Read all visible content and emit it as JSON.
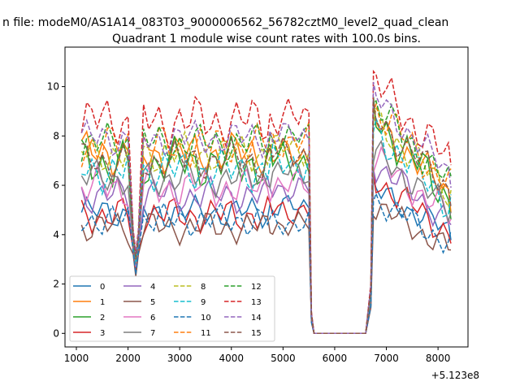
{
  "figure": {
    "suptitle": "n file: modeM0/AS1A14_083T03_9000006562_56782cztM0_level2_quad_clean"
  },
  "chart_data": {
    "type": "line",
    "title": "Quadrant 1 module wise count rates with 100.0s bins.",
    "xlabel": "",
    "ylabel": "",
    "x_offset_label": "+5.123e8",
    "xlim": [
      780,
      8580
    ],
    "ylim": [
      -0.55,
      11.6
    ],
    "x_ticks": [
      1000,
      2000,
      3000,
      4000,
      5000,
      6000,
      7000,
      8000
    ],
    "y_ticks": [
      0,
      2,
      4,
      6,
      8,
      10
    ],
    "grid": false,
    "legend": {
      "placement": "lower-left",
      "columns": 4
    },
    "x": [
      1100,
      1200,
      1300,
      1400,
      1500,
      1600,
      1700,
      1800,
      1900,
      2000,
      2100,
      2150,
      2200,
      2300,
      2400,
      2500,
      2600,
      2700,
      2800,
      2900,
      3000,
      3100,
      3200,
      3300,
      3400,
      3500,
      3600,
      3700,
      3800,
      3900,
      4000,
      4100,
      4200,
      4300,
      4400,
      4500,
      4600,
      4700,
      4750,
      4800,
      4900,
      5000,
      5100,
      5200,
      5300,
      5400,
      5500,
      5550,
      5600,
      5700,
      5800,
      5900,
      6000,
      6100,
      6200,
      6300,
      6400,
      6500,
      6600,
      6700,
      6750,
      6800,
      6900,
      7000,
      7100,
      7200,
      7300,
      7400,
      7500,
      7600,
      7700,
      7800,
      7900,
      8000,
      8100,
      8200,
      8250
    ],
    "seg_a_end": 4750,
    "seg_b_start": 4750,
    "seg_b_end": 6600,
    "seg_c_start": 6600,
    "series": [
      {
        "name": "0",
        "color": "#1f77b4",
        "dash": "solid",
        "base": 4.9,
        "dip": 2.6,
        "mid": 5.1,
        "post": 5.8,
        "end": 4.1,
        "amp": 0.45,
        "phase": 0.0
      },
      {
        "name": "1",
        "color": "#ff7f0e",
        "dash": "solid",
        "base": 7.3,
        "dip": 3.0,
        "mid": 7.2,
        "post": 8.6,
        "end": 5.6,
        "amp": 0.6,
        "phase": 0.4
      },
      {
        "name": "2",
        "color": "#2ca02c",
        "dash": "solid",
        "base": 6.9,
        "dip": 2.8,
        "mid": 7.0,
        "post": 8.8,
        "end": 5.4,
        "amp": 0.7,
        "phase": 0.9
      },
      {
        "name": "3",
        "color": "#d62728",
        "dash": "solid",
        "base": 4.8,
        "dip": 2.5,
        "mid": 5.0,
        "post": 6.3,
        "end": 4.0,
        "amp": 0.5,
        "phase": 1.3
      },
      {
        "name": "4",
        "color": "#9467bd",
        "dash": "solid",
        "base": 5.6,
        "dip": 2.7,
        "mid": 5.9,
        "post": 6.9,
        "end": 4.5,
        "amp": 0.5,
        "phase": 1.8
      },
      {
        "name": "5",
        "color": "#8c564b",
        "dash": "solid",
        "base": 4.3,
        "dip": 2.3,
        "mid": 4.4,
        "post": 5.2,
        "end": 3.4,
        "amp": 0.45,
        "phase": 2.2
      },
      {
        "name": "6",
        "color": "#e377c2",
        "dash": "solid",
        "base": 5.9,
        "dip": 2.7,
        "mid": 6.0,
        "post": 7.1,
        "end": 4.7,
        "amp": 0.55,
        "phase": 2.7
      },
      {
        "name": "7",
        "color": "#7f7f7f",
        "dash": "solid",
        "base": 6.3,
        "dip": 2.8,
        "mid": 6.5,
        "post": 7.3,
        "end": 5.0,
        "amp": 0.5,
        "phase": 3.1
      },
      {
        "name": "8",
        "color": "#bcbd22",
        "dash": "dashed",
        "base": 7.3,
        "dip": 3.0,
        "mid": 7.5,
        "post": 8.7,
        "end": 5.7,
        "amp": 0.55,
        "phase": 3.6
      },
      {
        "name": "9",
        "color": "#17becf",
        "dash": "dashed",
        "base": 6.6,
        "dip": 2.9,
        "mid": 6.9,
        "post": 8.3,
        "end": 5.2,
        "amp": 0.6,
        "phase": 4.0
      },
      {
        "name": "10",
        "color": "#1f77b4",
        "dash": "dashed",
        "base": 4.6,
        "dip": 2.4,
        "mid": 4.5,
        "post": 5.5,
        "end": 3.6,
        "amp": 0.45,
        "phase": 4.5
      },
      {
        "name": "11",
        "color": "#ff7f0e",
        "dash": "dashed",
        "base": 7.6,
        "dip": 3.1,
        "mid": 7.8,
        "post": 9.2,
        "end": 5.9,
        "amp": 0.6,
        "phase": 4.9
      },
      {
        "name": "12",
        "color": "#2ca02c",
        "dash": "dashed",
        "base": 7.7,
        "dip": 3.1,
        "mid": 7.9,
        "post": 9.3,
        "end": 6.0,
        "amp": 0.55,
        "phase": 5.4
      },
      {
        "name": "13",
        "color": "#d62728",
        "dash": "dashed",
        "base": 8.6,
        "dip": 3.3,
        "mid": 8.7,
        "post": 10.2,
        "end": 6.9,
        "amp": 0.7,
        "phase": 5.8
      },
      {
        "name": "14",
        "color": "#9467bd",
        "dash": "dashed",
        "base": 7.9,
        "dip": 3.2,
        "mid": 8.0,
        "post": 9.6,
        "end": 6.4,
        "amp": 0.5,
        "phase": 0.2
      },
      {
        "name": "15",
        "color": "#8c564b",
        "dash": "dashed",
        "base": 7.0,
        "dip": 3.0,
        "mid": 7.3,
        "post": 8.8,
        "end": 5.8,
        "amp": 0.55,
        "phase": 0.7
      }
    ]
  }
}
